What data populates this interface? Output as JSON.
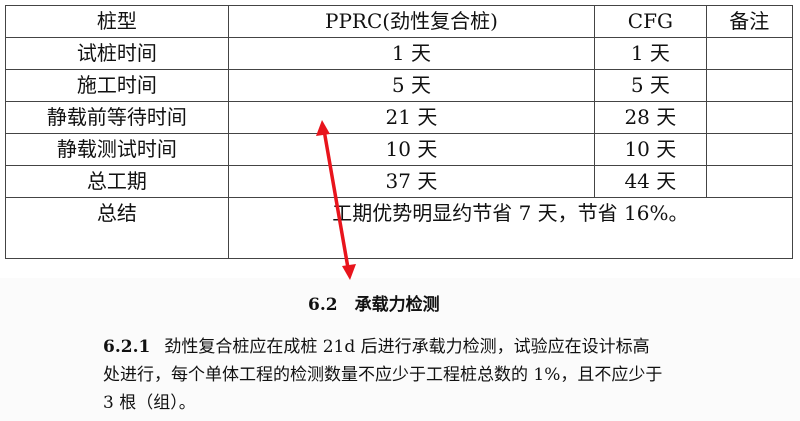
{
  "table": {
    "header": [
      "桩型",
      "PPRC(劲性复合桩)",
      "CFG",
      "备注"
    ],
    "rows": [
      [
        "试桩时间",
        "1 天",
        "1 天",
        ""
      ],
      [
        "施工时间",
        "5 天",
        "5 天",
        ""
      ],
      [
        "静载前等待时间",
        "21 天",
        "28 天",
        ""
      ],
      [
        "静载测试时间",
        "10 天",
        "10 天",
        ""
      ],
      [
        "总工期",
        "37 天",
        "44 天",
        ""
      ]
    ],
    "summary_label": "总结",
    "summary_text": "工期优势明显约节省 7 天，节省 16%。"
  },
  "section": {
    "heading": "6.2　承载力检测",
    "clause_number": "6.2.1",
    "clause_text": "劲性复合桩应在成桩 21d 后进行承载力检测，试验应在设计标高处进行，每个单体工程的检测数量不应少于工程桩总数的 1%，且不应少于 3 根（组）。"
  },
  "colors": {
    "arrow": "#e8141c"
  }
}
